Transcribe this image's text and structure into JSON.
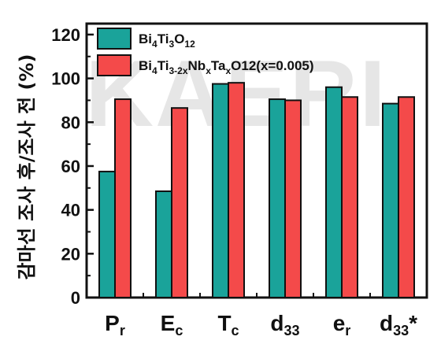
{
  "watermark": "KAERI",
  "chart_data": {
    "type": "bar",
    "ylabel": "감마선 조사 후/조사 전 (%)",
    "ylim": [
      0,
      125
    ],
    "yticks": [
      0,
      20,
      40,
      60,
      80,
      100,
      120
    ],
    "categories": [
      {
        "base": "P",
        "sub": "r",
        "sup": ""
      },
      {
        "base": "E",
        "sub": "c",
        "sup": ""
      },
      {
        "base": "T",
        "sub": "c",
        "sup": ""
      },
      {
        "base": "d",
        "sub": "33",
        "sup": ""
      },
      {
        "base": "e",
        "sub": "r",
        "sup": ""
      },
      {
        "base": "d",
        "sub": "33",
        "sup": "*"
      }
    ],
    "series": [
      {
        "name": "Bi4Ti3O12",
        "name_parts": [
          {
            "t": "Bi",
            "s": false
          },
          {
            "t": "4",
            "s": true
          },
          {
            "t": "Ti",
            "s": false
          },
          {
            "t": "3",
            "s": true
          },
          {
            "t": "O",
            "s": false
          },
          {
            "t": "12",
            "s": true
          }
        ],
        "color": "#1aa39a",
        "values": [
          57.5,
          48.5,
          97.5,
          90.5,
          96,
          88.5
        ]
      },
      {
        "name": "Bi4Ti3-2xNbxTaxO12(x=0.005)",
        "name_parts": [
          {
            "t": "Bi",
            "s": false
          },
          {
            "t": "4",
            "s": true
          },
          {
            "t": "Ti",
            "s": false
          },
          {
            "t": "3-2x",
            "s": true
          },
          {
            "t": "Nb",
            "s": false
          },
          {
            "t": "x",
            "s": true
          },
          {
            "t": "Ta",
            "s": false
          },
          {
            "t": "x",
            "s": true
          },
          {
            "t": "O12(x=0.005)",
            "s": false
          }
        ],
        "color": "#f44a4a",
        "values": [
          90.5,
          86.5,
          98,
          90,
          91.5,
          91.5
        ]
      }
    ],
    "legend": "top-left",
    "grid": false
  }
}
